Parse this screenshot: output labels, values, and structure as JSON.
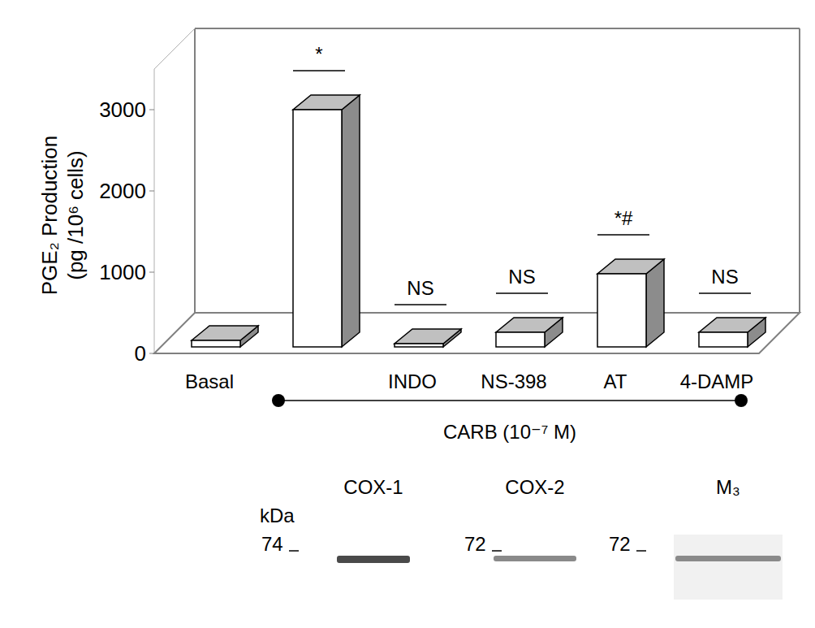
{
  "chart_data": {
    "type": "bar",
    "categories": [
      "Basal",
      null,
      "INDO",
      "NS-398",
      "AT",
      "4-DAMP"
    ],
    "values": [
      80,
      2920,
      40,
      180,
      900,
      180
    ],
    "ylim": [
      0,
      3500
    ],
    "yticks": [
      0,
      1000,
      2000,
      3000
    ],
    "y_label": "PGE₂ Production (pg /10⁶ cells)",
    "x_label": "CARB (10⁻⁷ M)",
    "annotations": [
      {
        "category": 1,
        "text": "*"
      },
      {
        "category": 2,
        "text": "NS"
      },
      {
        "category": 3,
        "text": "NS"
      },
      {
        "category": 4,
        "text": "*#"
      },
      {
        "category": 5,
        "text": "NS"
      }
    ],
    "blot": {
      "unit": "kDa",
      "bands": [
        {
          "label": "COX-1",
          "marker": 74
        },
        {
          "label": "COX-2",
          "marker": 72
        },
        {
          "label": "M₃",
          "marker": 72
        }
      ]
    }
  }
}
